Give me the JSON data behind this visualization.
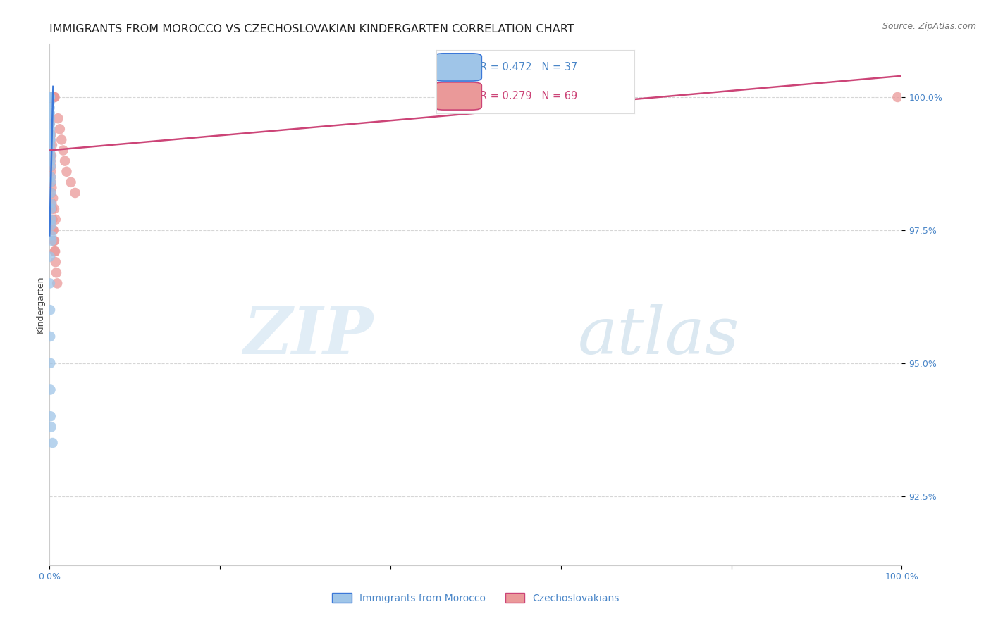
{
  "title": "IMMIGRANTS FROM MOROCCO VS CZECHOSLOVAKIAN KINDERGARTEN CORRELATION CHART",
  "source": "Source: ZipAtlas.com",
  "ylabel": "Kindergarten",
  "legend_blue_r": "R = 0.472",
  "legend_blue_n": "N = 37",
  "legend_pink_r": "R = 0.279",
  "legend_pink_n": "N = 69",
  "legend_label_blue": "Immigrants from Morocco",
  "legend_label_pink": "Czechoslovakians",
  "yticks": [
    92.5,
    95.0,
    97.5,
    100.0
  ],
  "ytick_labels": [
    "92.5%",
    "95.0%",
    "97.5%",
    "100.0%"
  ],
  "xlim": [
    0.0,
    100.0
  ],
  "ylim": [
    91.2,
    101.0
  ],
  "xticks": [
    0,
    20,
    40,
    60,
    80,
    100
  ],
  "xtick_labels": [
    "0.0%",
    "",
    "",
    "",
    "",
    "100.0%"
  ],
  "watermark_zip": "ZIP",
  "watermark_atlas": "atlas",
  "blue_scatter_color": "#9fc5e8",
  "pink_scatter_color": "#ea9999",
  "blue_line_color": "#3c78d8",
  "pink_line_color": "#cc4477",
  "axis_tick_color": "#4a86c8",
  "grid_color": "#cccccc",
  "title_color": "#222222",
  "title_fontsize": 11.5,
  "source_fontsize": 9,
  "tick_fontsize": 9,
  "ylabel_fontsize": 9,
  "blue_x": [
    0.02,
    0.02,
    0.02,
    0.03,
    0.03,
    0.04,
    0.04,
    0.05,
    0.05,
    0.05,
    0.06,
    0.06,
    0.07,
    0.07,
    0.08,
    0.08,
    0.09,
    0.1,
    0.11,
    0.12,
    0.13,
    0.14,
    0.15,
    0.16,
    0.18,
    0.2,
    0.22,
    0.25,
    0.04,
    0.05,
    0.06,
    0.07,
    0.08,
    0.1,
    0.12,
    0.2,
    0.35
  ],
  "blue_y": [
    100.0,
    99.9,
    99.8,
    100.0,
    99.7,
    100.0,
    99.6,
    100.0,
    99.5,
    99.3,
    99.4,
    99.2,
    99.3,
    99.1,
    99.2,
    99.0,
    98.9,
    98.8,
    98.7,
    98.5,
    98.4,
    98.2,
    98.0,
    97.9,
    97.7,
    97.6,
    97.4,
    97.3,
    97.0,
    96.5,
    96.0,
    95.5,
    95.0,
    94.5,
    94.0,
    93.8,
    93.5
  ],
  "pink_x": [
    0.02,
    0.03,
    0.04,
    0.05,
    0.06,
    0.07,
    0.08,
    0.09,
    0.1,
    0.11,
    0.12,
    0.13,
    0.14,
    0.15,
    0.16,
    0.17,
    0.18,
    0.19,
    0.2,
    0.22,
    0.24,
    0.26,
    0.28,
    0.3,
    0.35,
    0.4,
    0.45,
    0.5,
    0.55,
    0.6,
    0.02,
    0.04,
    0.06,
    0.08,
    0.1,
    0.12,
    0.15,
    0.18,
    0.2,
    0.25,
    0.3,
    0.35,
    0.4,
    0.5,
    0.6,
    0.7,
    0.8,
    0.9,
    1.0,
    1.2,
    1.4,
    1.6,
    1.8,
    2.0,
    2.5,
    3.0,
    0.15,
    0.25,
    0.4,
    0.55,
    0.7,
    0.45,
    0.55,
    0.65,
    0.2,
    0.3,
    0.22,
    0.18,
    99.5
  ],
  "pink_y": [
    100.0,
    100.0,
    100.0,
    100.0,
    100.0,
    100.0,
    100.0,
    100.0,
    100.0,
    100.0,
    100.0,
    100.0,
    100.0,
    100.0,
    100.0,
    100.0,
    100.0,
    100.0,
    100.0,
    100.0,
    100.0,
    100.0,
    100.0,
    100.0,
    100.0,
    100.0,
    100.0,
    100.0,
    100.0,
    100.0,
    99.5,
    99.3,
    99.1,
    98.9,
    99.2,
    98.8,
    98.6,
    98.4,
    98.2,
    98.0,
    97.9,
    97.7,
    97.5,
    97.3,
    97.1,
    96.9,
    96.7,
    96.5,
    99.6,
    99.4,
    99.2,
    99.0,
    98.8,
    98.6,
    98.4,
    98.2,
    98.5,
    98.3,
    98.1,
    97.9,
    97.7,
    97.5,
    97.3,
    97.1,
    99.3,
    99.1,
    98.9,
    98.7,
    100.0
  ],
  "blue_line_x": [
    0.0,
    0.42
  ],
  "blue_line_y": [
    97.4,
    100.2
  ],
  "pink_line_x": [
    0.0,
    100.0
  ],
  "pink_line_y": [
    99.0,
    100.4
  ]
}
